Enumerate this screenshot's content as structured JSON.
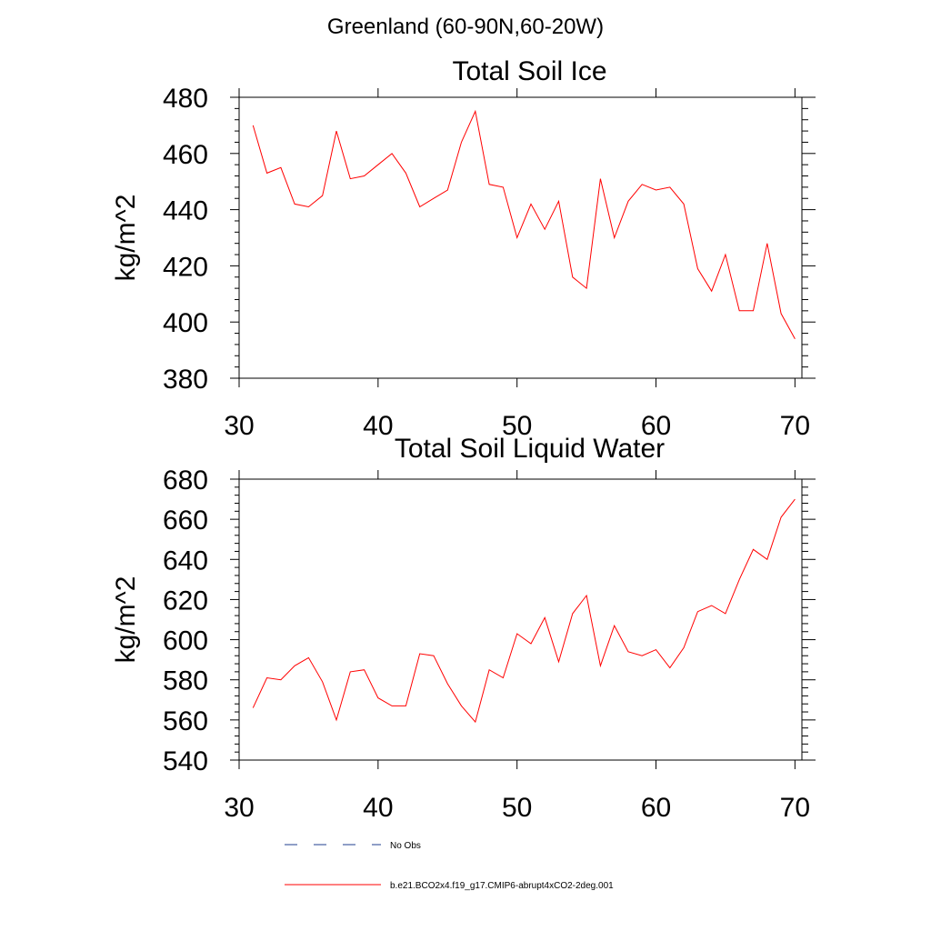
{
  "figure": {
    "title": "Greenland (60-90N,60-20W)"
  },
  "chart_data": [
    {
      "type": "line",
      "title": "Total Soil Ice",
      "xlabel": "",
      "ylabel": "kg/m^2",
      "xlim": [
        30,
        70.5
      ],
      "ylim": [
        380,
        480
      ],
      "xticks": [
        30,
        40,
        50,
        60,
        70
      ],
      "yticks": [
        380,
        400,
        420,
        440,
        460,
        480
      ],
      "grid": false,
      "series": [
        {
          "name": "b.e21.BCO2x4.f19_g17.CMIP6-abrupt4xCO2-2deg.001",
          "color": "#ff0000",
          "x": [
            31,
            32,
            33,
            34,
            35,
            36,
            37,
            38,
            39,
            40,
            41,
            42,
            43,
            44,
            45,
            46,
            47,
            48,
            49,
            50,
            51,
            52,
            53,
            54,
            55,
            56,
            57,
            58,
            59,
            60,
            61,
            62,
            63,
            64,
            65,
            66,
            67,
            68,
            69,
            70
          ],
          "values": [
            470,
            453,
            455,
            442,
            441,
            445,
            468,
            451,
            452,
            456,
            460,
            453,
            441,
            444,
            447,
            464,
            475,
            449,
            448,
            430,
            442,
            433,
            443,
            416,
            412,
            451,
            430,
            443,
            449,
            447,
            448,
            442,
            419,
            411,
            424,
            404,
            404,
            428,
            403,
            394
          ]
        }
      ]
    },
    {
      "type": "line",
      "title": "Total Soil Liquid Water",
      "xlabel": "",
      "ylabel": "kg/m^2",
      "xlim": [
        30,
        70.5
      ],
      "ylim": [
        540,
        680
      ],
      "xticks": [
        30,
        40,
        50,
        60,
        70
      ],
      "yticks": [
        540,
        560,
        580,
        600,
        620,
        640,
        660,
        680
      ],
      "grid": false,
      "series": [
        {
          "name": "b.e21.BCO2x4.f19_g17.CMIP6-abrupt4xCO2-2deg.001",
          "color": "#ff0000",
          "x": [
            31,
            32,
            33,
            34,
            35,
            36,
            37,
            38,
            39,
            40,
            41,
            42,
            43,
            44,
            45,
            46,
            47,
            48,
            49,
            50,
            51,
            52,
            53,
            54,
            55,
            56,
            57,
            58,
            59,
            60,
            61,
            62,
            63,
            64,
            65,
            66,
            67,
            68,
            69,
            70
          ],
          "values": [
            566,
            581,
            580,
            587,
            591,
            579,
            560,
            584,
            585,
            571,
            567,
            567,
            593,
            592,
            578,
            567,
            559,
            585,
            581,
            603,
            598,
            611,
            589,
            613,
            622,
            587,
            607,
            594,
            592,
            595,
            586,
            596,
            614,
            617,
            613,
            630,
            645,
            640,
            661,
            670
          ]
        }
      ]
    }
  ],
  "legend": {
    "position": "bottom-center",
    "entries": [
      {
        "label": "No Obs",
        "color": "#1f3f8f",
        "style": "dashed"
      },
      {
        "label": "b.e21.BCO2x4.f19_g17.CMIP6-abrupt4xCO2-2deg.001",
        "color": "#ff0000",
        "style": "solid"
      }
    ]
  }
}
